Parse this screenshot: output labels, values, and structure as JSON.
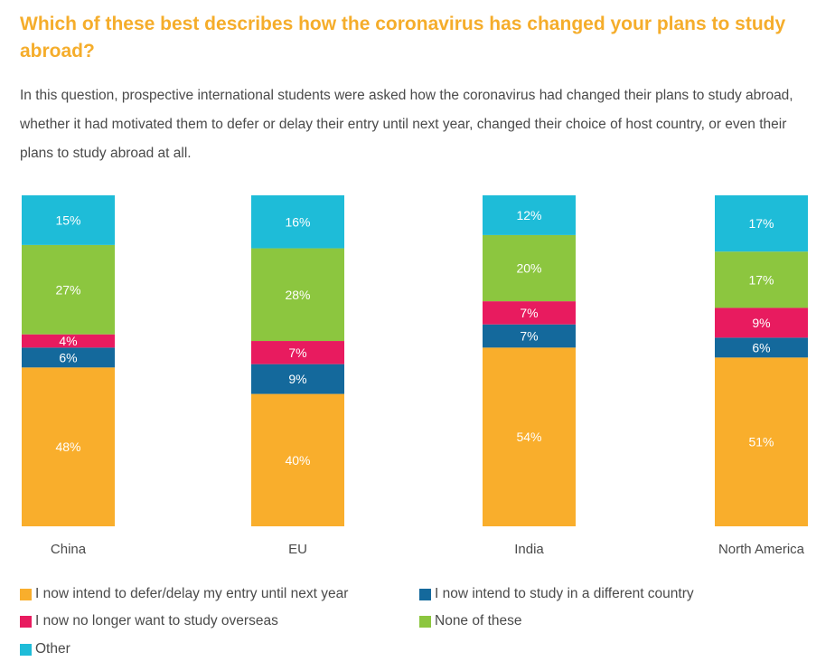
{
  "title": "Which of these best describes how the coronavirus has changed your plans to study abroad?",
  "intro": "In this question, prospective international students were asked how the coronavirus had changed their plans to study abroad, whether it had motivated them to defer or delay their entry until next year, changed their choice of host country, or even their plans to study abroad at all.",
  "colors": {
    "defer": "#f9ae2c",
    "different_country": "#14699c",
    "no_longer": "#e81b5f",
    "none": "#8cc63f",
    "other": "#1ebcd8",
    "title": "#f5ad2b"
  },
  "chart_data": {
    "type": "bar",
    "stacked": true,
    "categories": [
      "China",
      "EU",
      "India",
      "North America"
    ],
    "ylim": [
      0,
      100
    ],
    "grid": false,
    "legend_position": "bottom",
    "series": [
      {
        "key": "defer",
        "name": "I now intend to defer/delay my entry until next year",
        "values": [
          48,
          40,
          54,
          51
        ],
        "labels": [
          "48%",
          "40%",
          "54%",
          "51%"
        ]
      },
      {
        "key": "different_country",
        "name": "I now intend to study in a different country",
        "values": [
          6,
          9,
          7,
          6
        ],
        "labels": [
          "6%",
          "9%",
          "7%",
          "6%"
        ]
      },
      {
        "key": "no_longer",
        "name": "I now no longer want to study overseas",
        "values": [
          4,
          7,
          7,
          9
        ],
        "labels": [
          "4%",
          "7%",
          "7%",
          "9%"
        ]
      },
      {
        "key": "none",
        "name": "None of these",
        "values": [
          27,
          28,
          20,
          17
        ],
        "labels": [
          "27%",
          "28%",
          "20%",
          "17%"
        ]
      },
      {
        "key": "other",
        "name": "Other",
        "values": [
          15,
          16,
          12,
          17
        ],
        "labels": [
          "15%",
          "16%",
          "12%",
          "17%"
        ]
      }
    ]
  }
}
